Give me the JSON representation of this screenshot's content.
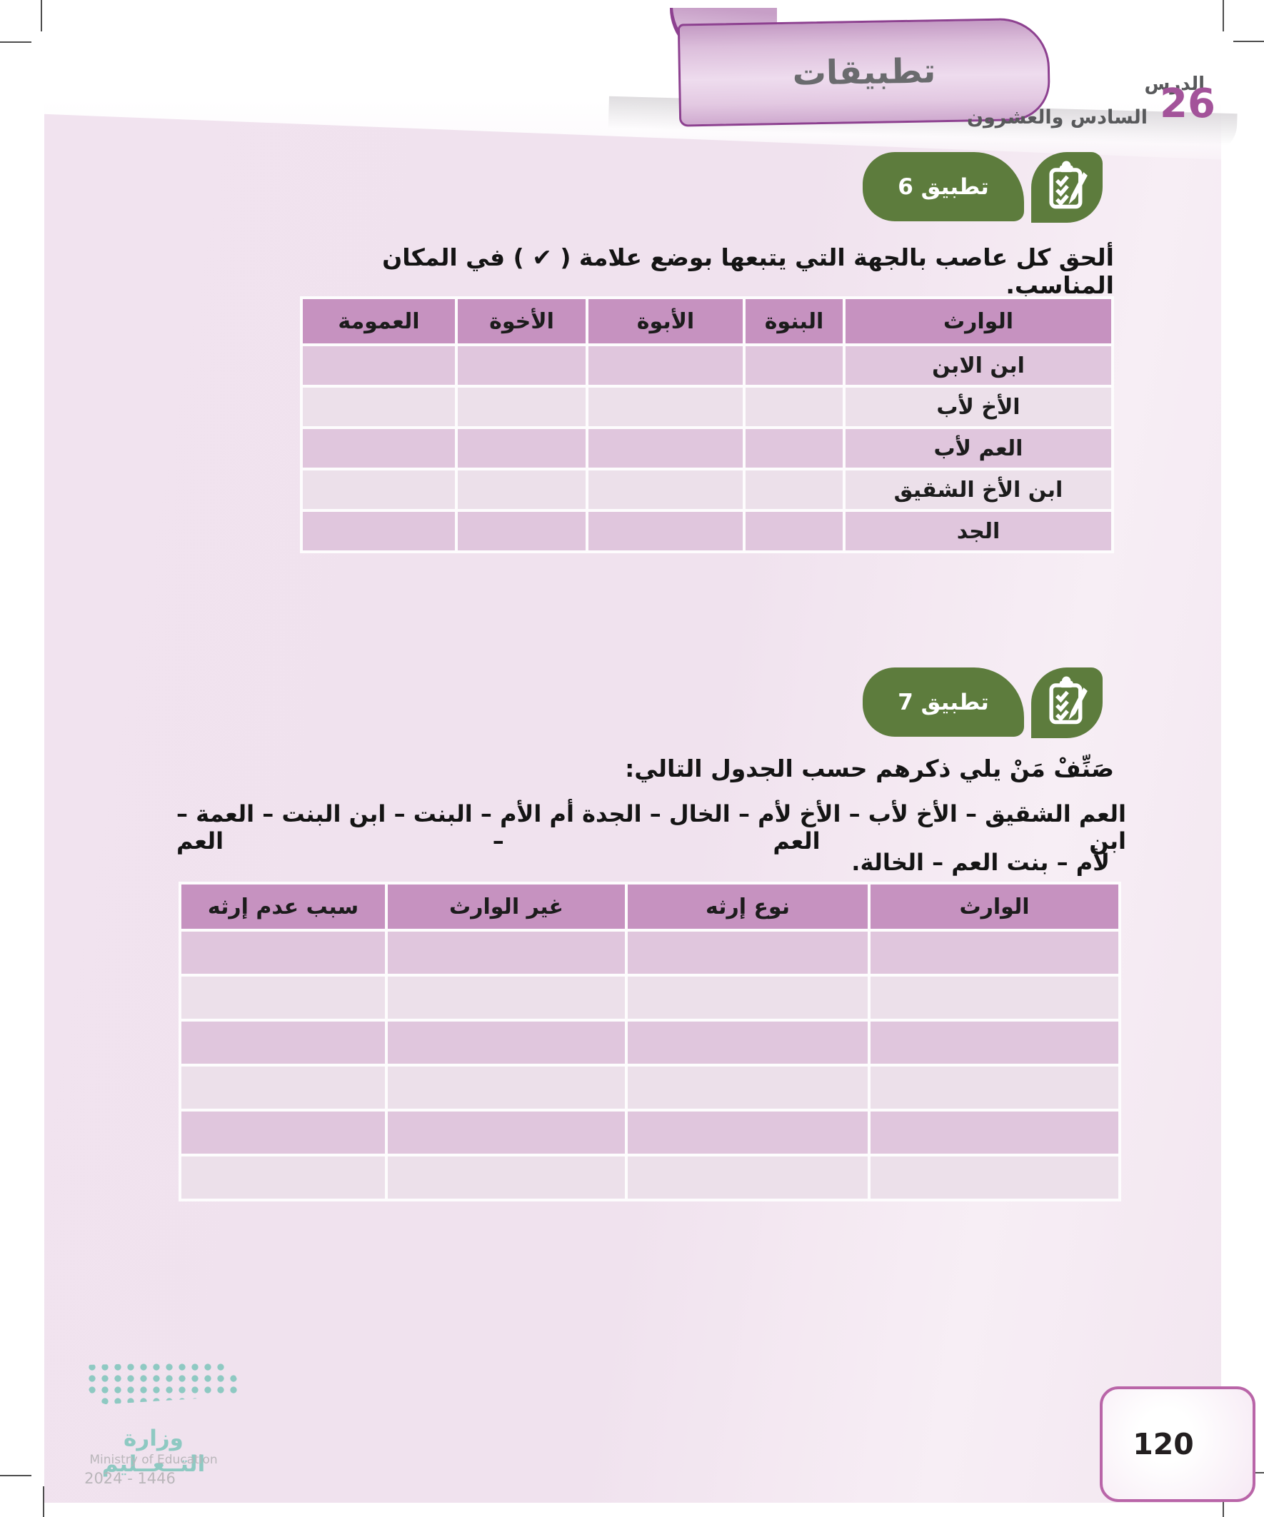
{
  "lesson": {
    "word": "الدرس",
    "number": "26",
    "name": "السادس والعشرون"
  },
  "banner": {
    "title": "تطبيقات"
  },
  "app6": {
    "badge": "تطبيق 6",
    "instruction": "ألحق كل عاصب بالجهة التي يتبعها بوضع علامة ( ✔ ) في المكان المناسب.",
    "table": {
      "headers": [
        "الوارث",
        "البنوة",
        "الأبوة",
        "الأخوة",
        "العمومة"
      ],
      "rows": [
        "ابن الابن",
        "الأخ لأب",
        "العم لأب",
        "ابن الأخ الشقيق",
        "الجد"
      ]
    }
  },
  "app7": {
    "badge": "تطبيق 7",
    "instruction": "صَنِّفْ مَنْ يلي ذكرهم حسب الجدول التالي:",
    "list_line1": "العم الشقيق – الأخ لأب – الأخ لأم – الخال – الجدة أم الأم – البنت – ابن البنت – العمة – ابن العم – العم",
    "list_line2": "لأم – بنت العم – الخالة.",
    "table": {
      "headers": [
        "الوارث",
        "نوع إرثه",
        "غير الوارث",
        "سبب عدم إرثه"
      ],
      "empty_rows": 6
    }
  },
  "footer": {
    "ministry_ar": "وزارة التــعــليم",
    "ministry_en": "Ministry of Education",
    "years": "2024 - 1446",
    "page_number": "120"
  },
  "colors": {
    "badge_green": "#5d7c3d",
    "banner_purple": "#8d4190",
    "lesson_number": "#a3539a",
    "table_header": "#c692c0",
    "row_dark": "#e0c6dd",
    "row_light": "#ece0ea",
    "logo_teal": "#8ec9c2"
  }
}
